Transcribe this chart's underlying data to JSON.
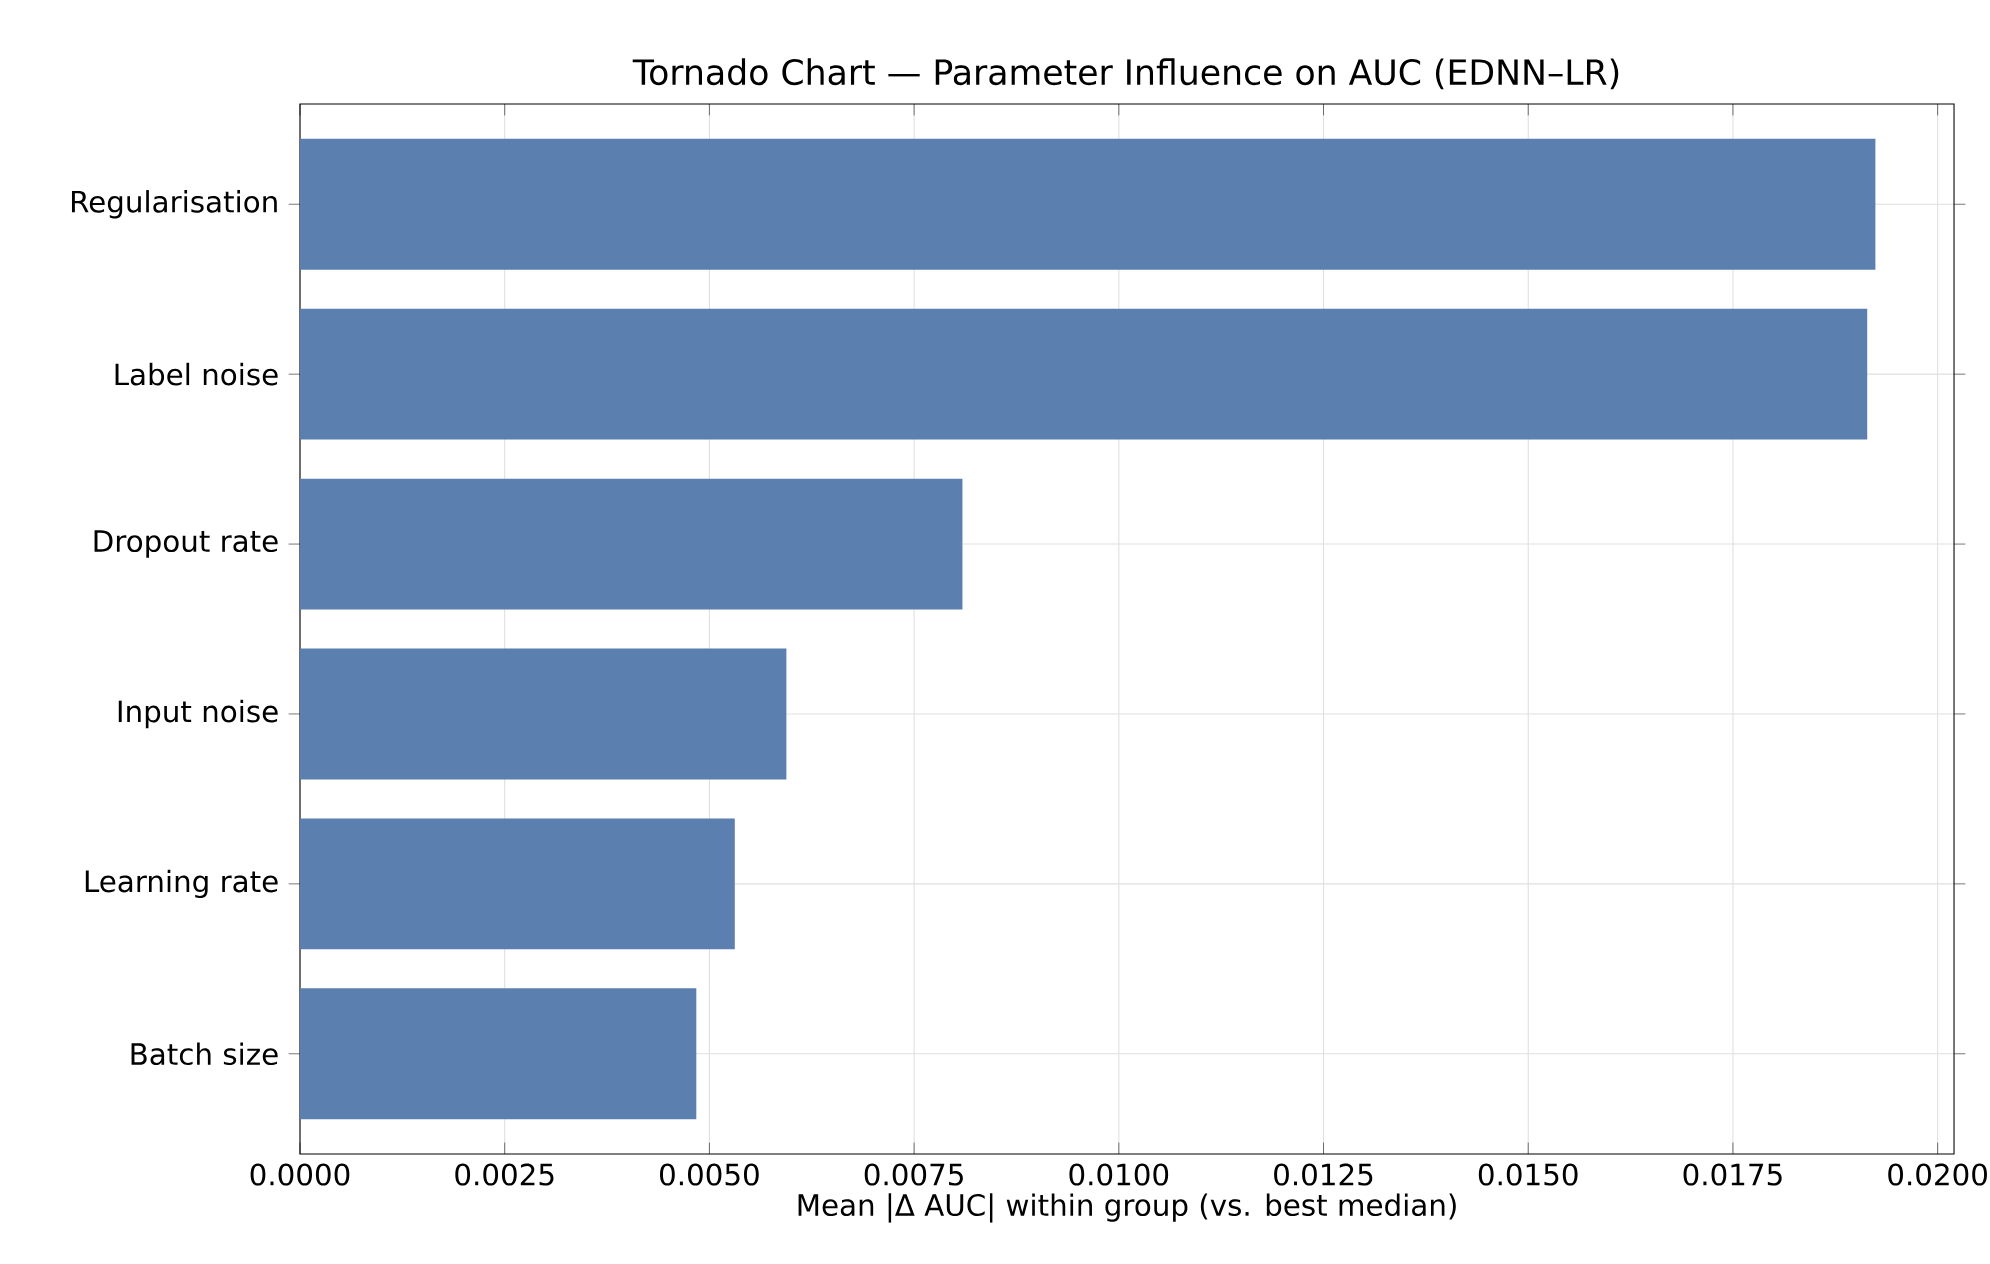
{
  "chart_data": {
    "type": "bar",
    "orientation": "horizontal",
    "title": "Tornado Chart — Parameter Influence on AUC (EDNN–LR)",
    "xlabel": "Mean |Δ AUC| within group (vs. best median)",
    "categories": [
      "Regularisation",
      "Label noise",
      "Dropout rate",
      "Input noise",
      "Learning rate",
      "Batch size"
    ],
    "values": [
      0.01924,
      0.01914,
      0.00809,
      0.00594,
      0.00531,
      0.00484
    ],
    "color": "#5b7fae",
    "xlim": [
      0,
      0.0202
    ],
    "xticks": [
      {
        "value": 0,
        "label": "0.0000"
      },
      {
        "value": 0.0025,
        "label": "0.0025"
      },
      {
        "value": 0.005,
        "label": "0.0050"
      },
      {
        "value": 0.0075,
        "label": "0.0075"
      },
      {
        "value": 0.01,
        "label": "0.0100"
      },
      {
        "value": 0.0125,
        "label": "0.0125"
      },
      {
        "value": 0.015,
        "label": "0.0150"
      },
      {
        "value": 0.0175,
        "label": "0.0175"
      },
      {
        "value": 0.02,
        "label": "0.0200"
      }
    ],
    "grid": true
  }
}
